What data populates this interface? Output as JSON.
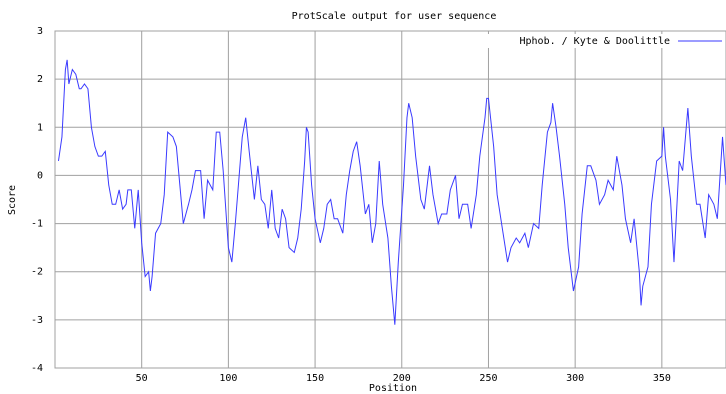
{
  "chart_data": {
    "type": "line",
    "title": "ProtScale output for user sequence",
    "xlabel": "Position",
    "ylabel": "Score",
    "x": [
      2,
      4,
      6,
      7,
      8,
      10,
      12,
      14,
      15,
      17,
      19,
      21,
      23,
      25,
      27,
      29,
      31,
      33,
      35,
      37,
      39,
      41,
      42,
      44,
      46,
      48,
      50,
      52,
      54,
      55,
      56,
      58,
      61,
      63,
      65,
      68,
      70,
      72,
      74,
      77,
      79,
      81,
      84,
      86,
      88,
      91,
      93,
      95,
      97,
      100,
      102,
      104,
      106,
      108,
      110,
      112,
      115,
      117,
      119,
      121,
      123,
      125,
      127,
      129,
      131,
      133,
      135,
      138,
      140,
      142,
      144,
      145,
      146,
      148,
      150,
      153,
      155,
      157,
      159,
      161,
      163,
      166,
      168,
      170,
      172,
      174,
      176,
      179,
      181,
      183,
      185,
      187,
      189,
      192,
      194,
      196,
      198,
      201,
      203,
      204,
      206,
      208,
      211,
      213,
      216,
      218,
      221,
      223,
      226,
      228,
      231,
      233,
      235,
      238,
      240,
      243,
      245,
      248,
      249,
      250,
      253,
      255,
      258,
      261,
      263,
      266,
      268,
      271,
      273,
      276,
      279,
      281,
      284,
      286,
      287,
      289,
      291,
      294,
      296,
      299,
      302,
      304,
      307,
      309,
      312,
      314,
      317,
      319,
      322,
      324,
      327,
      329,
      332,
      334,
      337,
      338,
      339,
      342,
      344,
      347,
      350,
      351,
      352,
      355,
      357,
      360,
      362,
      365,
      367,
      370,
      372,
      375,
      377,
      380,
      382,
      385,
      387
    ],
    "series": [
      {
        "name": "Hphob. / Kyte & Doolittle",
        "color": "#3a3aff",
        "values": [
          0.3,
          0.8,
          2.2,
          2.4,
          1.9,
          2.2,
          2.1,
          1.8,
          1.8,
          1.9,
          1.8,
          1.0,
          0.6,
          0.4,
          0.4,
          0.5,
          -0.2,
          -0.6,
          -0.6,
          -0.3,
          -0.7,
          -0.6,
          -0.3,
          -0.3,
          -1.1,
          -0.3,
          -1.4,
          -2.1,
          -2.0,
          -2.4,
          -2.1,
          -1.2,
          -1.0,
          -0.4,
          0.9,
          0.8,
          0.6,
          -0.2,
          -1.0,
          -0.6,
          -0.3,
          0.1,
          0.1,
          -0.9,
          -0.1,
          -0.3,
          0.9,
          0.9,
          0.1,
          -1.5,
          -1.8,
          -1.0,
          -0.1,
          0.8,
          1.2,
          0.5,
          -0.5,
          0.2,
          -0.5,
          -0.6,
          -1.1,
          -0.3,
          -1.1,
          -1.3,
          -0.7,
          -0.9,
          -1.5,
          -1.6,
          -1.3,
          -0.7,
          0.3,
          1.0,
          0.9,
          -0.2,
          -0.9,
          -1.4,
          -1.1,
          -0.6,
          -0.5,
          -0.9,
          -0.9,
          -1.2,
          -0.4,
          0.1,
          0.5,
          0.7,
          0.2,
          -0.8,
          -0.6,
          -1.4,
          -1.0,
          0.3,
          -0.6,
          -1.3,
          -2.3,
          -3.1,
          -1.8,
          -0.2,
          1.2,
          1.5,
          1.2,
          0.4,
          -0.5,
          -0.7,
          0.2,
          -0.4,
          -1.0,
          -0.8,
          -0.8,
          -0.3,
          0.0,
          -0.9,
          -0.6,
          -0.6,
          -1.1,
          -0.4,
          0.4,
          1.2,
          1.6,
          1.6,
          0.6,
          -0.4,
          -1.1,
          -1.8,
          -1.5,
          -1.3,
          -1.4,
          -1.2,
          -1.5,
          -1.0,
          -1.1,
          -0.2,
          0.9,
          1.1,
          1.5,
          1.0,
          0.4,
          -0.6,
          -1.5,
          -2.4,
          -1.9,
          -0.8,
          0.2,
          0.2,
          -0.1,
          -0.6,
          -0.4,
          -0.1,
          -0.3,
          0.4,
          -0.2,
          -0.9,
          -1.4,
          -0.9,
          -2.0,
          -2.7,
          -2.3,
          -1.9,
          -0.6,
          0.3,
          0.4,
          1.0,
          0.4,
          -0.5,
          -1.8,
          0.3,
          0.1,
          1.4,
          0.4,
          -0.6,
          -0.6,
          -1.3,
          -0.4,
          -0.6,
          -0.9,
          0.8,
          -0.2
        ]
      }
    ],
    "xlim": [
      0,
      387
    ],
    "ylim": [
      -4,
      3
    ],
    "xticks": [
      50,
      100,
      150,
      200,
      250,
      300,
      350
    ],
    "yticks": [
      -4,
      -3,
      -2,
      -1,
      0,
      1,
      2,
      3
    ],
    "grid": true,
    "legend": "upper right"
  }
}
